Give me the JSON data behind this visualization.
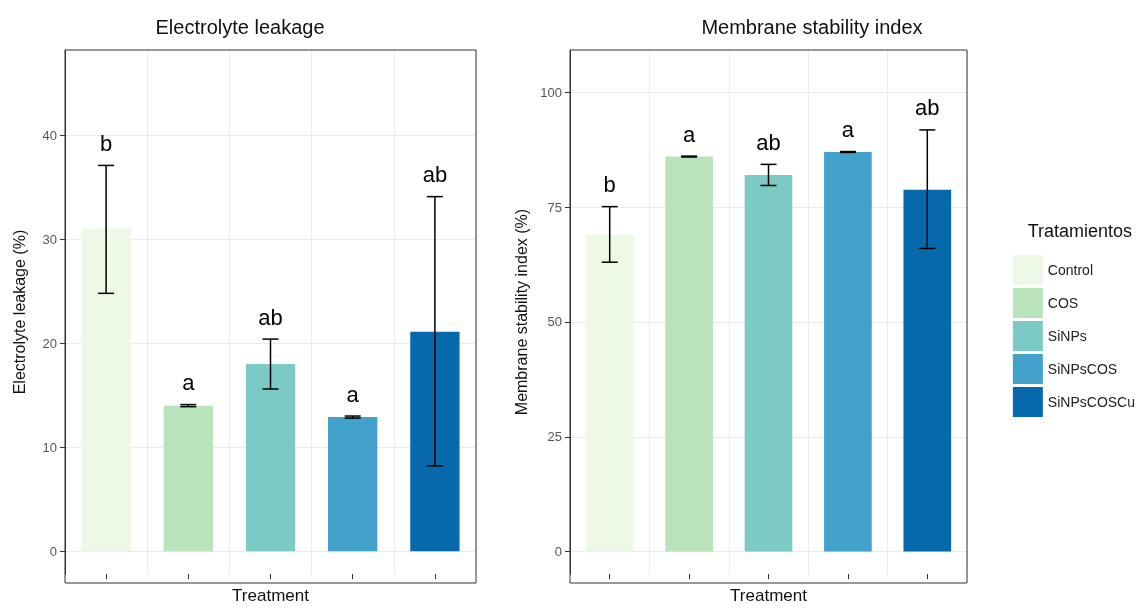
{
  "chart_data": [
    {
      "type": "bar",
      "title": "Electrolyte leakage",
      "xlabel": "Treatment",
      "ylabel": "Electrolyte leakage (%)",
      "categories": [
        null,
        null,
        null,
        null,
        null
      ],
      "ylim": [
        -2.2,
        48.2
      ],
      "yticks": [
        0,
        10,
        20,
        30,
        40
      ],
      "grid": true,
      "legend": false,
      "series": [
        {
          "color": "#edf8e6",
          "values": [
            31,
            null,
            null,
            null,
            null
          ],
          "errors": [
            [
              24.8,
              37.1
            ],
            null,
            null,
            null,
            null
          ]
        },
        {
          "color": "#b8e3bb",
          "values": [
            null,
            14,
            null,
            null,
            null
          ],
          "errors": [
            null,
            [
              13.9,
              14.1
            ],
            null,
            null,
            null
          ]
        },
        {
          "color": "#7bcbc4",
          "values": [
            null,
            null,
            18,
            null,
            null
          ],
          "errors": [
            null,
            null,
            [
              15.6,
              20.4
            ],
            null,
            null
          ]
        },
        {
          "color": "#43a2cb",
          "values": [
            null,
            null,
            null,
            12.9,
            null
          ],
          "errors": [
            null,
            null,
            null,
            [
              12.8,
              13.0
            ],
            null
          ]
        },
        {
          "color": "#0868ac",
          "values": [
            null,
            null,
            null,
            null,
            21.1
          ],
          "errors": [
            null,
            null,
            null,
            null,
            [
              8.2,
              34.1
            ]
          ]
        }
      ],
      "annotations": [
        "b",
        "a",
        "ab",
        "a",
        "ab"
      ]
    },
    {
      "type": "bar",
      "title": "Membrane stability index",
      "xlabel": "Treatment",
      "ylabel": "Membrane stability index (%)",
      "legend_title": "Tratamientos",
      "categories": [
        null,
        null,
        null,
        null,
        null
      ],
      "ylim": [
        -4.9,
        109.2
      ],
      "yticks": [
        0,
        25,
        50,
        75,
        100
      ],
      "grid": true,
      "legend": "right",
      "series": [
        {
          "name": "Control",
          "color": "#edf8e6",
          "values": [
            69,
            null,
            null,
            null,
            null
          ],
          "errors": [
            [
              63,
              75.1
            ],
            null,
            null,
            null,
            null
          ]
        },
        {
          "name": "COS",
          "color": "#b8e3bb",
          "values": [
            null,
            86,
            null,
            null,
            null
          ],
          "errors": [
            null,
            [
              85.9,
              86.1
            ],
            null,
            null,
            null
          ]
        },
        {
          "name": "SiNPs",
          "color": "#7bcbc4",
          "values": [
            null,
            null,
            82,
            null,
            null
          ],
          "errors": [
            null,
            null,
            [
              79.7,
              84.3
            ],
            null,
            null
          ]
        },
        {
          "name": "SiNPsCOS",
          "color": "#43a2cb",
          "values": [
            null,
            null,
            null,
            87,
            null
          ],
          "errors": [
            null,
            null,
            null,
            [
              86.9,
              87.1
            ],
            null
          ]
        },
        {
          "name": "SiNPsCOSCu",
          "color": "#0868ac",
          "values": [
            null,
            null,
            null,
            null,
            78.8
          ],
          "errors": [
            null,
            null,
            null,
            null,
            [
              66,
              91.8
            ]
          ]
        }
      ],
      "annotations": [
        "b",
        "a",
        "ab",
        "a",
        "ab"
      ]
    }
  ]
}
